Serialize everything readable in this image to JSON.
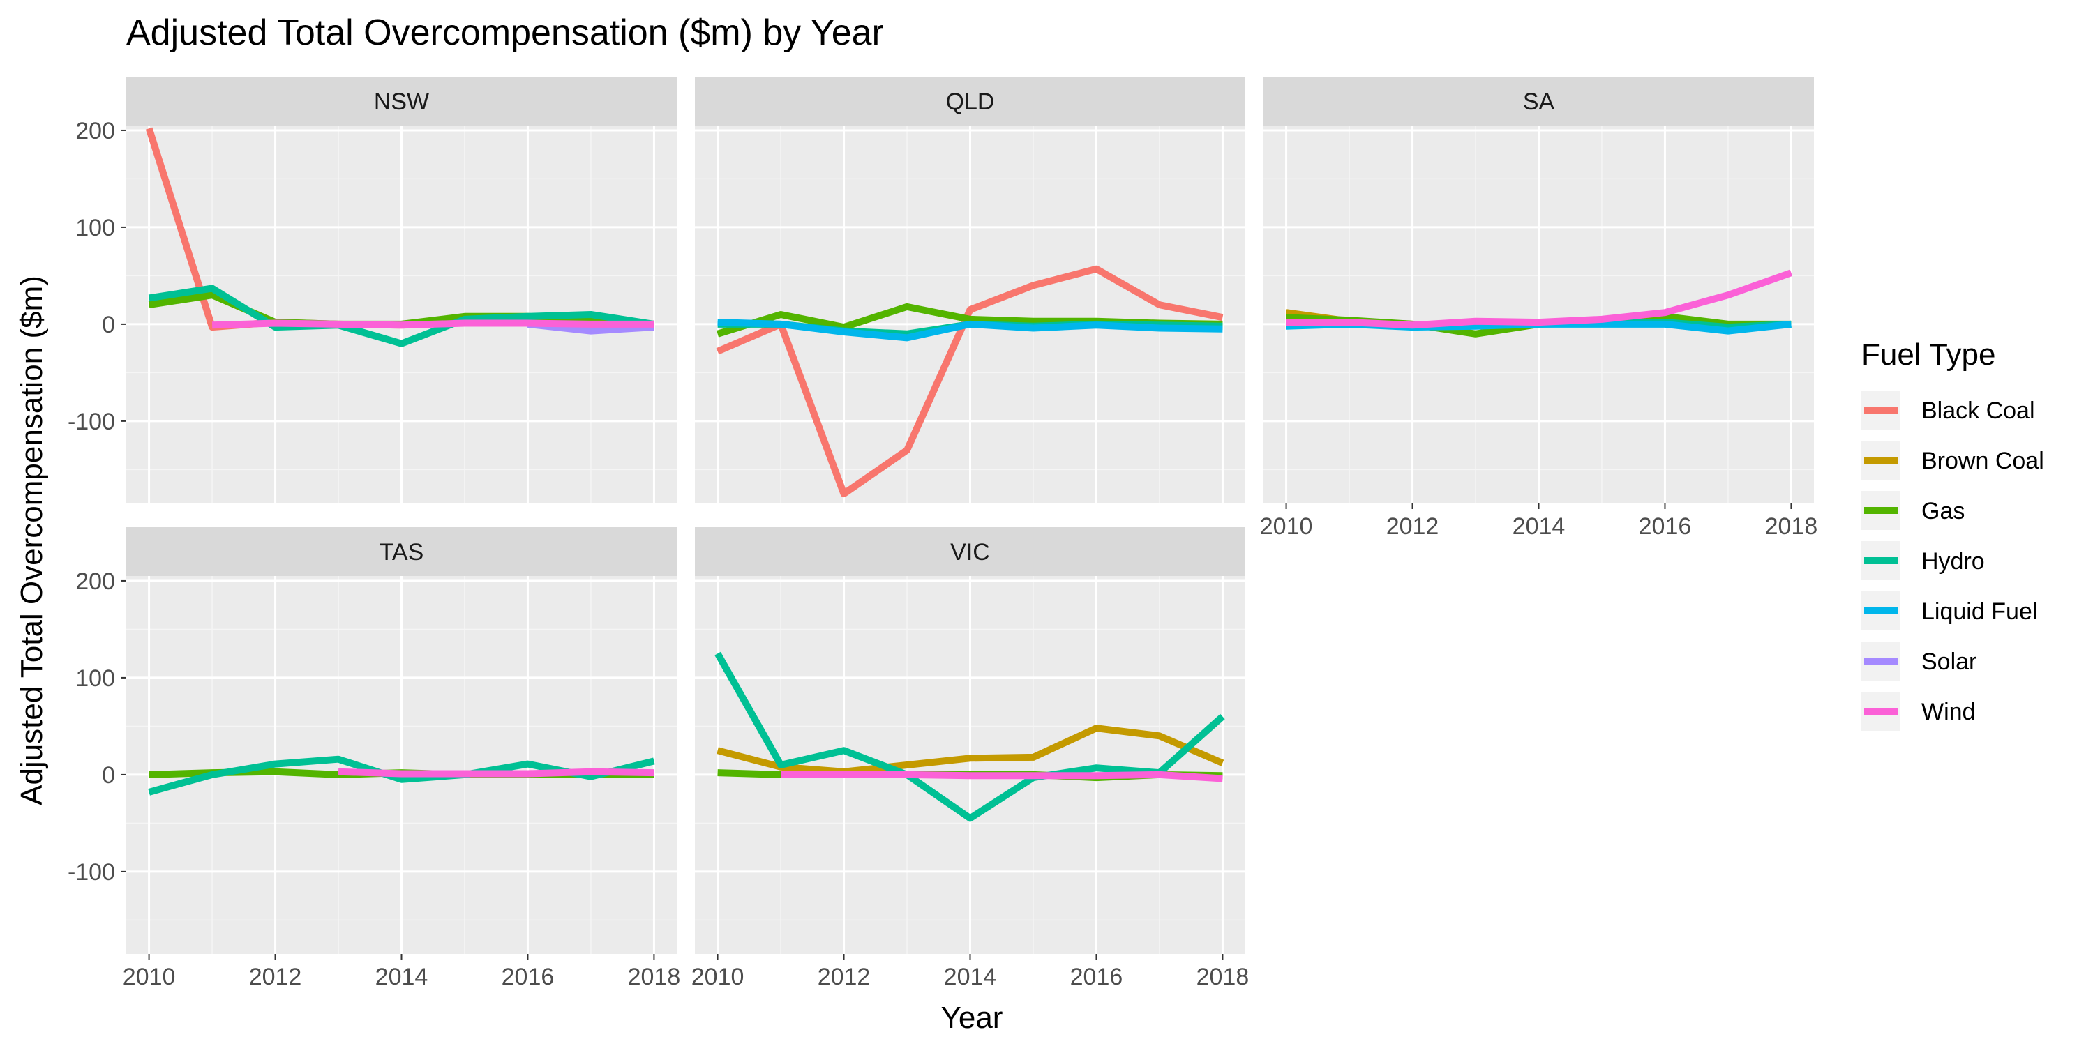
{
  "chart_data": {
    "type": "line",
    "title": "Adjusted Total Overcompensation ($m) by Year",
    "xlabel": "Year",
    "ylabel": "Adjusted Total Overcompensation ($m)",
    "ylim": [
      -185,
      205
    ],
    "xlim": [
      2010,
      2018
    ],
    "x_ticks": [
      "2010",
      "2012",
      "2014",
      "2016",
      "2018"
    ],
    "y_ticks": [
      "-100",
      "0",
      "100",
      "200"
    ],
    "grid": true,
    "legend": {
      "title": "Fuel Type",
      "placement": "right",
      "entries": [
        {
          "name": "Black Coal",
          "color": "#F8766D"
        },
        {
          "name": "Brown Coal",
          "color": "#C49A00"
        },
        {
          "name": "Gas",
          "color": "#53B400"
        },
        {
          "name": "Hydro",
          "color": "#00C094"
        },
        {
          "name": "Liquid Fuel",
          "color": "#00B6EB"
        },
        {
          "name": "Solar",
          "color": "#A58AFF"
        },
        {
          "name": "Wind",
          "color": "#FB61D7"
        }
      ]
    },
    "panels": [
      {
        "name": "NSW",
        "series": [
          {
            "name": "Black Coal",
            "x": [
              2010,
              2011,
              2012,
              2013,
              2014,
              2015,
              2016,
              2017,
              2018
            ],
            "values": [
              202,
              -3,
              2,
              0,
              -1,
              2,
              2,
              0,
              0
            ]
          },
          {
            "name": "Gas",
            "x": [
              2010,
              2011,
              2012,
              2013,
              2014,
              2015,
              2016,
              2017,
              2018
            ],
            "values": [
              20,
              30,
              2,
              0,
              0,
              8,
              8,
              5,
              0
            ]
          },
          {
            "name": "Hydro",
            "x": [
              2010,
              2011,
              2012,
              2013,
              2014,
              2015,
              2016,
              2017,
              2018
            ],
            "values": [
              27,
              37,
              -3,
              -1,
              -20,
              5,
              8,
              10,
              0
            ]
          },
          {
            "name": "Solar",
            "x": [
              2016,
              2017,
              2018
            ],
            "values": [
              0,
              -7,
              -3
            ]
          },
          {
            "name": "Wind",
            "x": [
              2011,
              2012,
              2013,
              2014,
              2015,
              2016,
              2017,
              2018
            ],
            "values": [
              -1,
              1,
              0,
              -1,
              1,
              1,
              0,
              0
            ]
          }
        ]
      },
      {
        "name": "QLD",
        "series": [
          {
            "name": "Black Coal",
            "x": [
              2010,
              2011,
              2012,
              2013,
              2014,
              2015,
              2016,
              2017,
              2018
            ],
            "values": [
              -28,
              0,
              -175,
              -130,
              15,
              40,
              57,
              20,
              7
            ]
          },
          {
            "name": "Gas",
            "x": [
              2010,
              2011,
              2012,
              2013,
              2014,
              2015,
              2016,
              2017,
              2018
            ],
            "values": [
              -10,
              10,
              -3,
              18,
              5,
              3,
              3,
              1,
              0
            ]
          },
          {
            "name": "Hydro",
            "x": [
              2010,
              2011,
              2012,
              2013,
              2014,
              2015,
              2016,
              2017,
              2018
            ],
            "values": [
              0,
              0,
              -7,
              -10,
              0,
              -2,
              0,
              -1,
              -2
            ]
          },
          {
            "name": "Liquid Fuel",
            "x": [
              2010,
              2011,
              2012,
              2013,
              2014,
              2015,
              2016,
              2017,
              2018
            ],
            "values": [
              2,
              0,
              -8,
              -14,
              0,
              -4,
              -1,
              -4,
              -5
            ]
          }
        ]
      },
      {
        "name": "SA",
        "series": [
          {
            "name": "Brown Coal",
            "x": [
              2010,
              2011,
              2012
            ],
            "values": [
              12,
              3,
              0
            ]
          },
          {
            "name": "Gas",
            "x": [
              2010,
              2011,
              2012,
              2013,
              2014,
              2015,
              2016,
              2017,
              2018
            ],
            "values": [
              7,
              4,
              0,
              -10,
              0,
              3,
              8,
              0,
              0
            ]
          },
          {
            "name": "Hydro",
            "x": [
              2010,
              2011,
              2012,
              2013,
              2014,
              2015,
              2016,
              2017,
              2018
            ],
            "values": [
              0,
              1,
              -2,
              0,
              0,
              1,
              2,
              -3,
              0
            ]
          },
          {
            "name": "Liquid Fuel",
            "x": [
              2010,
              2011,
              2012,
              2013,
              2014,
              2015,
              2016,
              2017,
              2018
            ],
            "values": [
              -2,
              0,
              -3,
              -2,
              0,
              0,
              0,
              -7,
              0
            ]
          },
          {
            "name": "Wind",
            "x": [
              2010,
              2011,
              2012,
              2013,
              2014,
              2015,
              2016,
              2017,
              2018
            ],
            "values": [
              2,
              2,
              -1,
              3,
              2,
              5,
              12,
              30,
              53
            ]
          }
        ]
      },
      {
        "name": "TAS",
        "series": [
          {
            "name": "Gas",
            "x": [
              2010,
              2011,
              2012,
              2013,
              2014,
              2015,
              2016,
              2017,
              2018
            ],
            "values": [
              0,
              2,
              3,
              0,
              2,
              0,
              0,
              0,
              0
            ]
          },
          {
            "name": "Hydro",
            "x": [
              2010,
              2011,
              2012,
              2013,
              2014,
              2015,
              2016,
              2017,
              2018
            ],
            "values": [
              -18,
              0,
              11,
              16,
              -5,
              0,
              11,
              -2,
              14
            ]
          },
          {
            "name": "Wind",
            "x": [
              2013,
              2014,
              2015,
              2016,
              2017,
              2018
            ],
            "values": [
              3,
              1,
              1,
              1,
              3,
              2
            ]
          }
        ]
      },
      {
        "name": "VIC",
        "series": [
          {
            "name": "Brown Coal",
            "x": [
              2010,
              2011,
              2012,
              2013,
              2014,
              2015,
              2016,
              2017,
              2018
            ],
            "values": [
              25,
              8,
              3,
              10,
              17,
              18,
              48,
              40,
              12
            ]
          },
          {
            "name": "Gas",
            "x": [
              2010,
              2011,
              2012,
              2013,
              2014,
              2015,
              2016,
              2017,
              2018
            ],
            "values": [
              2,
              0,
              0,
              0,
              0,
              0,
              -3,
              0,
              -1
            ]
          },
          {
            "name": "Hydro",
            "x": [
              2010,
              2011,
              2012,
              2013,
              2014,
              2015,
              2016,
              2017,
              2018
            ],
            "values": [
              125,
              10,
              25,
              0,
              -45,
              -3,
              7,
              2,
              60
            ]
          },
          {
            "name": "Wind",
            "x": [
              2011,
              2012,
              2013,
              2014,
              2015,
              2016,
              2017,
              2018
            ],
            "values": [
              0,
              0,
              0,
              -1,
              -1,
              -1,
              0,
              -4
            ]
          }
        ]
      }
    ]
  }
}
